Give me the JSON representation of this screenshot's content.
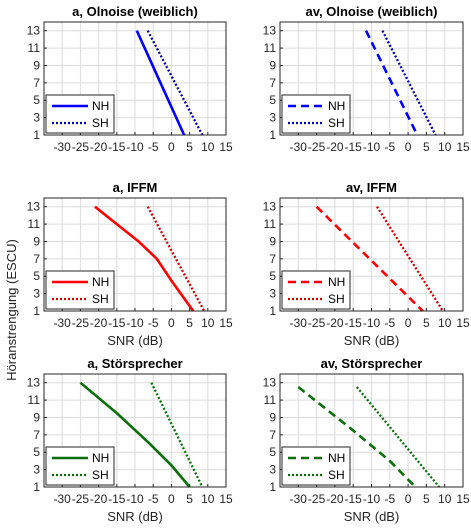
{
  "figure": {
    "ylabel": "Höranstrengung (ESCU)"
  },
  "chart_data": [
    {
      "type": "line",
      "title": "a, Olnoise (weiblich)",
      "xlabel": "",
      "ylabel": "",
      "xlim": [
        -35,
        15
      ],
      "ylim": [
        1,
        14
      ],
      "xticks": [
        -30,
        -25,
        -20,
        -15,
        -10,
        -5,
        0,
        5,
        10,
        15
      ],
      "yticks": [
        1,
        3,
        5,
        7,
        9,
        11,
        13
      ],
      "grid": true,
      "legend_position": "bottom-left",
      "series": [
        {
          "name": "NH",
          "color": "#0000ff",
          "style": "solid",
          "x": [
            -9.5,
            3.5
          ],
          "y": [
            13,
            1
          ]
        },
        {
          "name": "SH",
          "color": "#0000aa",
          "style": "dotted",
          "x": [
            -6.5,
            8.5
          ],
          "y": [
            13,
            1
          ]
        }
      ]
    },
    {
      "type": "line",
      "title": "av, Olnoise (weiblich)",
      "xlabel": "",
      "ylabel": "",
      "xlim": [
        -35,
        15
      ],
      "ylim": [
        1,
        14
      ],
      "xticks": [
        -30,
        -25,
        -20,
        -15,
        -10,
        -5,
        0,
        5,
        10,
        15
      ],
      "yticks": [
        1,
        3,
        5,
        7,
        9,
        11,
        13
      ],
      "grid": true,
      "legend_position": "bottom-left",
      "series": [
        {
          "name": "NH",
          "color": "#0000ff",
          "style": "dashed",
          "x": [
            -11.5,
            2.5
          ],
          "y": [
            13,
            1
          ]
        },
        {
          "name": "SH",
          "color": "#0000aa",
          "style": "dotted",
          "x": [
            -7,
            7.5
          ],
          "y": [
            13,
            1
          ]
        }
      ]
    },
    {
      "type": "line",
      "title": "a, IFFM",
      "xlabel": "SNR (dB)",
      "ylabel": "",
      "xlim": [
        -35,
        15
      ],
      "ylim": [
        1,
        14
      ],
      "xticks": [
        -30,
        -25,
        -20,
        -15,
        -10,
        -5,
        0,
        5,
        10,
        15
      ],
      "yticks": [
        1,
        3,
        5,
        7,
        9,
        11,
        13
      ],
      "grid": true,
      "legend_position": "bottom-left",
      "series": [
        {
          "name": "NH",
          "color": "#ff0000",
          "style": "solid",
          "x": [
            -21,
            -15,
            -9,
            -4,
            0,
            6
          ],
          "y": [
            13,
            11,
            9,
            7,
            4.5,
            1
          ]
        },
        {
          "name": "SH",
          "color": "#cc0000",
          "style": "dotted",
          "x": [
            -6.5,
            9
          ],
          "y": [
            13,
            1
          ]
        }
      ]
    },
    {
      "type": "line",
      "title": "av, IFFM",
      "xlabel": "SNR (dB)",
      "ylabel": "",
      "xlim": [
        -35,
        15
      ],
      "ylim": [
        1,
        14
      ],
      "xticks": [
        -30,
        -25,
        -20,
        -15,
        -10,
        -5,
        0,
        5,
        10,
        15
      ],
      "yticks": [
        1,
        3,
        5,
        7,
        9,
        11,
        13
      ],
      "grid": true,
      "legend_position": "bottom-left",
      "series": [
        {
          "name": "NH",
          "color": "#ff0000",
          "style": "dashed",
          "x": [
            -25,
            4
          ],
          "y": [
            13,
            1
          ]
        },
        {
          "name": "SH",
          "color": "#cc0000",
          "style": "dotted",
          "x": [
            -8.5,
            9.5
          ],
          "y": [
            13,
            1
          ]
        }
      ]
    },
    {
      "type": "line",
      "title": "a, Störsprecher",
      "xlabel": "SNR (dB)",
      "ylabel": "",
      "xlim": [
        -35,
        15
      ],
      "ylim": [
        1,
        14
      ],
      "xticks": [
        -30,
        -25,
        -20,
        -15,
        -10,
        -5,
        0,
        5,
        10,
        15
      ],
      "yticks": [
        1,
        3,
        5,
        7,
        9,
        11,
        13
      ],
      "grid": true,
      "legend_position": "bottom-left",
      "series": [
        {
          "name": "NH",
          "color": "#0a6e0a",
          "style": "solid",
          "x": [
            -25,
            -15,
            -6,
            0,
            5
          ],
          "y": [
            13,
            9.5,
            6,
            3.5,
            1
          ]
        },
        {
          "name": "SH",
          "color": "#0a6e0a",
          "style": "dotted",
          "x": [
            -5.5,
            8.5
          ],
          "y": [
            13,
            1
          ]
        }
      ]
    },
    {
      "type": "line",
      "title": "av, Störsprecher",
      "xlabel": "SNR (dB)",
      "ylabel": "",
      "xlim": [
        -35,
        15
      ],
      "ylim": [
        1,
        14
      ],
      "xticks": [
        -30,
        -25,
        -20,
        -15,
        -10,
        -5,
        0,
        5,
        10,
        15
      ],
      "yticks": [
        1,
        3,
        5,
        7,
        9,
        11,
        13
      ],
      "grid": true,
      "legend_position": "bottom-left",
      "series": [
        {
          "name": "NH",
          "color": "#0a6e0a",
          "style": "dashed",
          "x": [
            -30,
            -15,
            -5,
            2
          ],
          "y": [
            12.5,
            7.5,
            4,
            1
          ]
        },
        {
          "name": "SH",
          "color": "#0a6e0a",
          "style": "dotted",
          "x": [
            -14,
            8.5
          ],
          "y": [
            12.5,
            1
          ]
        }
      ]
    }
  ]
}
